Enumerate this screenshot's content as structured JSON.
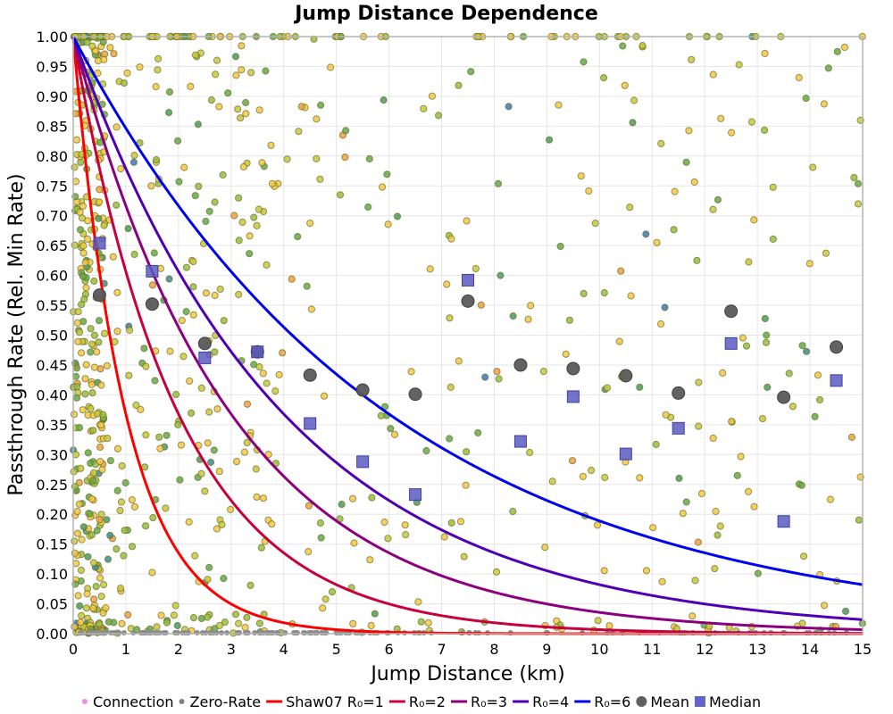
{
  "chart_data": {
    "type": "scatter",
    "title": "Jump Distance Dependence",
    "xlabel": "Jump Distance (km)",
    "ylabel": "Passthrough Rate (Rel. Min Rate)",
    "xlim": [
      0,
      15
    ],
    "ylim": [
      0,
      1
    ],
    "grid": true,
    "x_ticks": [
      "0",
      "1",
      "2",
      "3",
      "4",
      "5",
      "6",
      "7",
      "8",
      "9",
      "10",
      "11",
      "12",
      "13",
      "14",
      "15"
    ],
    "y_ticks": [
      "0.00",
      "0.05",
      "0.10",
      "0.15",
      "0.20",
      "0.25",
      "0.30",
      "0.35",
      "0.40",
      "0.45",
      "0.50",
      "0.55",
      "0.60",
      "0.65",
      "0.70",
      "0.75",
      "0.80",
      "0.85",
      "0.90",
      "0.95",
      "1.00"
    ],
    "legend_position": "bottom",
    "legend": [
      {
        "label": "Connection",
        "kind": "dot",
        "color": "#f08cf0"
      },
      {
        "label": "Zero-Rate",
        "kind": "dot",
        "color": "#808080"
      },
      {
        "label": "Shaw07 R₀=1",
        "kind": "line",
        "color": "#ff0000"
      },
      {
        "label": "R₀=2",
        "kind": "line",
        "color": "#c8003c"
      },
      {
        "label": "R₀=3",
        "kind": "line",
        "color": "#8c0080"
      },
      {
        "label": "R₀=4",
        "kind": "line",
        "color": "#5000b4"
      },
      {
        "label": "R₀=6",
        "kind": "line",
        "color": "#0000f0"
      },
      {
        "label": "Mean",
        "kind": "circle",
        "color": "#606060"
      },
      {
        "label": "Median",
        "kind": "square",
        "color": "#6464c8"
      }
    ],
    "curves": [
      {
        "name": "Shaw07 R₀=1",
        "formula": "exp(-x/R0)",
        "R0": 1,
        "color": "#ff0000"
      },
      {
        "name": "R₀=2",
        "formula": "exp(-x/R0)",
        "R0": 2,
        "color": "#c8003c"
      },
      {
        "name": "R₀=3",
        "formula": "exp(-x/R0)",
        "R0": 3,
        "color": "#8c0080"
      },
      {
        "name": "R₀=4",
        "formula": "exp(-x/R0)",
        "R0": 4,
        "color": "#5000b4"
      },
      {
        "name": "R₀=6",
        "formula": "exp(-x/R0)",
        "R0": 6,
        "color": "#0000f0"
      }
    ],
    "mean": {
      "x": [
        0.5,
        1.5,
        2.5,
        3.5,
        4.5,
        5.5,
        6.5,
        7.5,
        8.5,
        9.5,
        10.5,
        11.5,
        12.5,
        13.5,
        14.5
      ],
      "y": [
        0.567,
        0.552,
        0.486,
        0.472,
        0.433,
        0.408,
        0.401,
        0.557,
        0.45,
        0.444,
        0.432,
        0.403,
        0.54,
        0.396,
        0.48
      ]
    },
    "median": {
      "x": [
        0.5,
        1.5,
        2.5,
        3.5,
        4.5,
        5.5,
        6.5,
        7.5,
        8.5,
        9.5,
        10.5,
        11.5,
        12.5,
        13.5,
        14.5
      ],
      "y": [
        0.654,
        0.607,
        0.462,
        0.472,
        0.352,
        0.288,
        0.233,
        0.592,
        0.322,
        0.397,
        0.301,
        0.344,
        0.486,
        0.188,
        0.424
      ]
    },
    "connection_point_colors": [
      "#f5c842",
      "#c8c83c",
      "#96be3c",
      "#64aa46",
      "#4b9b5a",
      "#f0a03c",
      "#3c8c8c",
      "#3c78b4"
    ]
  }
}
